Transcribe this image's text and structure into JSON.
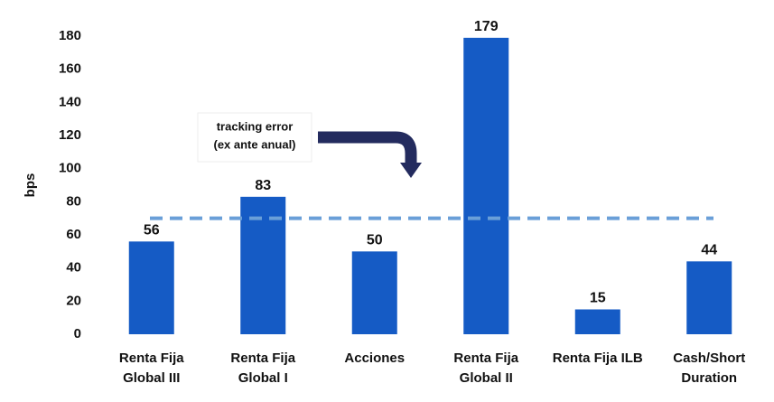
{
  "chart_data": {
    "type": "bar",
    "y_label": "bps",
    "categories": [
      [
        "Renta Fija",
        "Global III"
      ],
      [
        "Renta Fija",
        "Global I"
      ],
      [
        "Acciones"
      ],
      [
        "Renta Fija",
        "Global II"
      ],
      [
        "Renta Fija ILB"
      ],
      [
        "Cash/Short",
        "Duration"
      ]
    ],
    "values": [
      56,
      83,
      50,
      179,
      15,
      44
    ],
    "color": "#155bc5",
    "ylim": [
      0,
      180
    ],
    "yticks": [
      0,
      20,
      40,
      60,
      80,
      100,
      120,
      140,
      160,
      180
    ],
    "reference_line": 70,
    "reference_color": "#6a9fd8",
    "annotation": [
      "tracking error",
      "(ex ante anual)"
    ]
  }
}
